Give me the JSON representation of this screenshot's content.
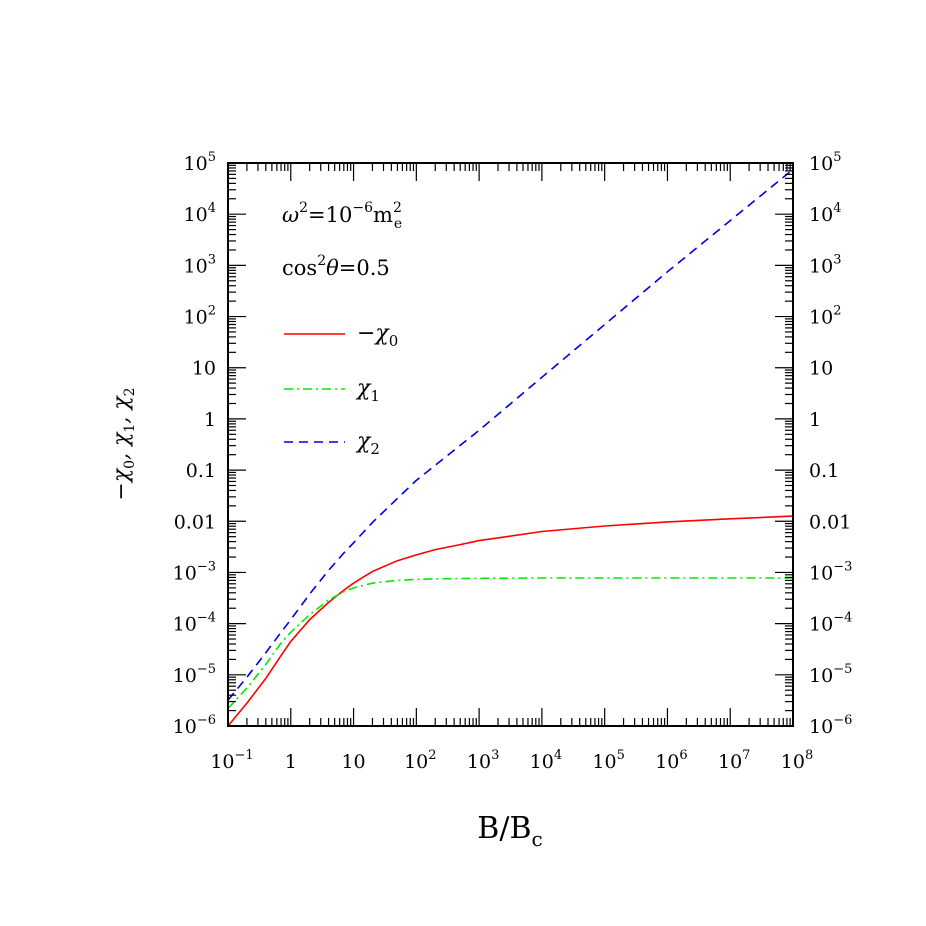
{
  "chart_data": {
    "type": "line",
    "xscale": "log",
    "yscale": "log",
    "xlim": [
      0.1,
      100000000
    ],
    "ylim": [
      1e-06,
      100000
    ],
    "xlabel": {
      "base": "B/B",
      "sub": "c"
    },
    "ylabel": [
      {
        "main": "−χ",
        "sub": "0"
      },
      {
        "main": ", χ",
        "sub": "1"
      },
      {
        "main": ", χ",
        "sub": "2"
      }
    ],
    "x_ticks": [
      {
        "value": 0.1,
        "base": "10",
        "exp": "−1"
      },
      {
        "value": 1,
        "base": "1",
        "exp": ""
      },
      {
        "value": 10,
        "base": "10",
        "exp": ""
      },
      {
        "value": 100,
        "base": "10",
        "exp": "2"
      },
      {
        "value": 1000,
        "base": "10",
        "exp": "3"
      },
      {
        "value": 10000,
        "base": "10",
        "exp": "4"
      },
      {
        "value": 100000,
        "base": "10",
        "exp": "5"
      },
      {
        "value": 1000000,
        "base": "10",
        "exp": "6"
      },
      {
        "value": 10000000,
        "base": "10",
        "exp": "7"
      },
      {
        "value": 100000000,
        "base": "10",
        "exp": "8"
      }
    ],
    "y_ticks": [
      {
        "value": 1e-06,
        "base": "10",
        "exp": "−6"
      },
      {
        "value": 1e-05,
        "base": "10",
        "exp": "−5"
      },
      {
        "value": 0.0001,
        "base": "10",
        "exp": "−4"
      },
      {
        "value": 0.001,
        "base": "10",
        "exp": "−3"
      },
      {
        "value": 0.01,
        "base": "0.01",
        "exp": ""
      },
      {
        "value": 0.1,
        "base": "0.1",
        "exp": ""
      },
      {
        "value": 1,
        "base": "1",
        "exp": ""
      },
      {
        "value": 10,
        "base": "10",
        "exp": ""
      },
      {
        "value": 100,
        "base": "10",
        "exp": "2"
      },
      {
        "value": 1000,
        "base": "10",
        "exp": "3"
      },
      {
        "value": 10000,
        "base": "10",
        "exp": "4"
      },
      {
        "value": 100000,
        "base": "10",
        "exp": "5"
      }
    ],
    "annotations": [
      {
        "parts": [
          {
            "t": "ω",
            "italic": true
          },
          {
            "t": "2",
            "sup": true
          },
          {
            "t": "=10"
          },
          {
            "t": "−6",
            "sup": true
          },
          {
            "t": "m"
          },
          {
            "t": "2",
            "supsub": "e"
          }
        ]
      },
      {
        "parts": [
          {
            "t": "cos"
          },
          {
            "t": "2",
            "sup": true
          },
          {
            "t": "θ",
            "italic": true
          },
          {
            "t": "=0.5"
          }
        ]
      }
    ],
    "legend": "top-left",
    "series": [
      {
        "name": "−χ",
        "name_sub": "0",
        "color": "#ff0000",
        "dash": "solid",
        "x": [
          0.1,
          0.2,
          0.4,
          0.7,
          1,
          2,
          4,
          7,
          10,
          20,
          50,
          100,
          200,
          500,
          1000,
          10000,
          100000,
          1000000,
          10000000,
          100000000
        ],
        "y": [
          1e-06,
          2.8e-06,
          8.5e-06,
          2.4e-05,
          4.5e-05,
          0.00012,
          0.00026,
          0.00045,
          0.00062,
          0.00105,
          0.0017,
          0.0022,
          0.0028,
          0.0035,
          0.0042,
          0.0063,
          0.0081,
          0.0097,
          0.0112,
          0.0126
        ]
      },
      {
        "name": "χ",
        "name_sub": "1",
        "color": "#00ee00",
        "dash": "dashdot",
        "x": [
          0.1,
          0.2,
          0.4,
          0.7,
          1,
          2,
          4,
          7,
          10,
          20,
          50,
          100,
          200,
          500,
          1000,
          10000,
          100000,
          1000000,
          10000000,
          100000000
        ],
        "y": [
          2.2e-06,
          5.5e-06,
          1.6e-05,
          4.2e-05,
          6.8e-05,
          0.00015,
          0.00029,
          0.00042,
          0.0005,
          0.00062,
          0.0007,
          0.00073,
          0.00075,
          0.00076,
          0.00077,
          0.00078,
          0.00078,
          0.00078,
          0.00078,
          0.00078
        ]
      },
      {
        "name": "χ",
        "name_sub": "2",
        "color": "#0000dd",
        "dash": "dashed",
        "x": [
          0.1,
          0.2,
          0.4,
          0.7,
          1,
          2,
          4,
          7,
          10,
          20,
          50,
          100,
          1000,
          10000,
          100000,
          1000000,
          10000000,
          100000000
        ],
        "y": [
          3.2e-06,
          9e-06,
          2.7e-05,
          6.8e-05,
          0.00012,
          0.00038,
          0.0011,
          0.0024,
          0.0038,
          0.0095,
          0.028,
          0.063,
          0.6,
          6.5,
          70,
          750,
          7500,
          75000
        ]
      }
    ]
  }
}
